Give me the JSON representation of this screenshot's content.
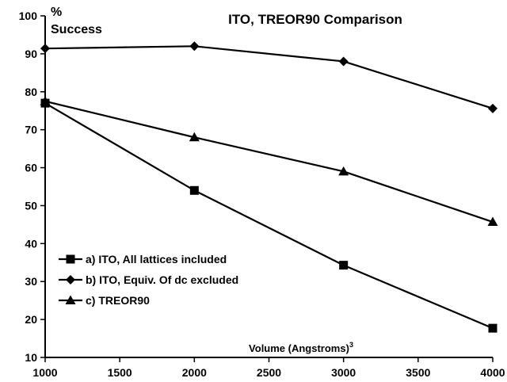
{
  "chart_data": {
    "type": "line",
    "title": "ITO, TREOR90 Comparison",
    "ylabel_line1": "%",
    "ylabel_line2": "Success",
    "xlabel": "Volume (Angstroms)",
    "xlabel_sup": "3",
    "xlim": [
      1000,
      4000
    ],
    "ylim": [
      10,
      100
    ],
    "xticks": [
      1000,
      1500,
      2000,
      2500,
      3000,
      3500,
      4000
    ],
    "yticks": [
      10,
      20,
      30,
      40,
      50,
      60,
      70,
      80,
      90,
      100
    ],
    "grid": false,
    "legend_position": "bottom-left",
    "series": [
      {
        "name": "a) ITO, All lattices included",
        "marker": "square",
        "x": [
          1000,
          2000,
          3000,
          4000
        ],
        "y": [
          77,
          54,
          34.3,
          17.7
        ]
      },
      {
        "name": "b) ITO, Equiv. Of dc excluded",
        "marker": "diamond",
        "x": [
          1000,
          2000,
          3000,
          4000
        ],
        "y": [
          91.4,
          92,
          88,
          75.6
        ]
      },
      {
        "name": "c) TREOR90",
        "marker": "triangle",
        "x": [
          1000,
          2000,
          3000,
          4000
        ],
        "y": [
          77.5,
          68,
          59,
          45.7
        ]
      }
    ]
  }
}
